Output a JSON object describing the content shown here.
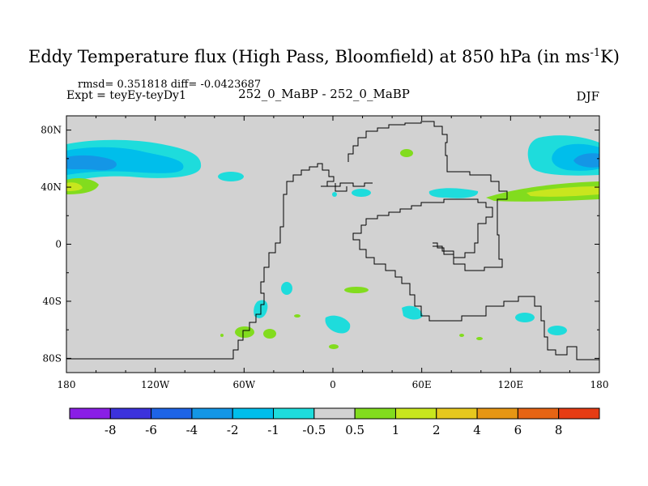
{
  "title": "Eddy Temperature flux (High Pass, Bloomfield) at 850 hPa (in ms",
  "title_sup": "-1",
  "title_end": "K)",
  "stats_line": "rmsd= 0.351818  diff= -0.0423687",
  "expt_line": "Expt = teyEy-teyDy1",
  "center_label": "252_0_MaBP - 252_0_MaBP",
  "season": "DJF",
  "chart_data": {
    "type": "heatmap",
    "description": "Lat-lon map of eddy temperature flux difference at 850 hPa",
    "x_axis": {
      "range": [
        -180,
        180
      ],
      "ticks": [
        -180,
        -120,
        -60,
        0,
        60,
        120,
        180
      ],
      "tick_labels": [
        "180",
        "120W",
        "60W",
        "0",
        "60E",
        "120E",
        "180"
      ]
    },
    "y_axis": {
      "range": [
        -90,
        90
      ],
      "ticks": [
        80,
        40,
        0,
        -40,
        -80
      ],
      "tick_labels": [
        "80N",
        "40N",
        "0",
        "40S",
        "80S"
      ]
    },
    "colorbar": {
      "labels": [
        "-8",
        "-6",
        "-4",
        "-2",
        "-1",
        "-0.5",
        "0.5",
        "1",
        "2",
        "4",
        "6",
        "8"
      ],
      "colors": [
        "#8a1ee6",
        "#3c32dc",
        "#1e64e6",
        "#1496e6",
        "#00beeb",
        "#1edcdc",
        "#d2d2d2",
        "#82dc1e",
        "#c8e61e",
        "#e6c81e",
        "#e69614",
        "#e66414",
        "#e63c14"
      ]
    },
    "background_color": "#d2d2d2",
    "features": [
      {
        "level": "-2",
        "lon": -165,
        "lat": 50
      },
      {
        "level": "-1",
        "lon": -140,
        "lat": 48
      },
      {
        "level": "1",
        "lon": -175,
        "lat": 37
      },
      {
        "level": "2",
        "lon": -178,
        "lat": 36
      },
      {
        "level": "-2",
        "lon": 158,
        "lat": 52
      },
      {
        "level": "-1",
        "lon": 150,
        "lat": 50
      },
      {
        "level": "1",
        "lon": 152,
        "lat": 32
      },
      {
        "level": "2",
        "lon": 165,
        "lat": 33
      },
      {
        "level": "-0.5",
        "lon": -74,
        "lat": 43
      },
      {
        "level": "-0.5",
        "lon": 17,
        "lat": 34
      },
      {
        "level": "-0.5",
        "lon": 68,
        "lat": 31
      },
      {
        "level": "1",
        "lon": 51,
        "lat": 58
      },
      {
        "level": "-0.5",
        "lon": -32,
        "lat": -33
      },
      {
        "level": "1",
        "lon": 17,
        "lat": -34
      },
      {
        "level": "-0.5",
        "lon": -47,
        "lat": -48
      },
      {
        "level": "1",
        "lon": -58,
        "lat": -63
      },
      {
        "level": "1",
        "lon": -41,
        "lat": -64
      },
      {
        "level": "-0.5",
        "lon": 5,
        "lat": -57
      },
      {
        "level": "-0.5",
        "lon": 53,
        "lat": -47
      },
      {
        "level": "-0.5",
        "lon": 126,
        "lat": -52
      },
      {
        "level": "-0.5",
        "lon": 150,
        "lat": -61
      },
      {
        "level": "1",
        "lon": 2,
        "lat": -72
      }
    ]
  }
}
